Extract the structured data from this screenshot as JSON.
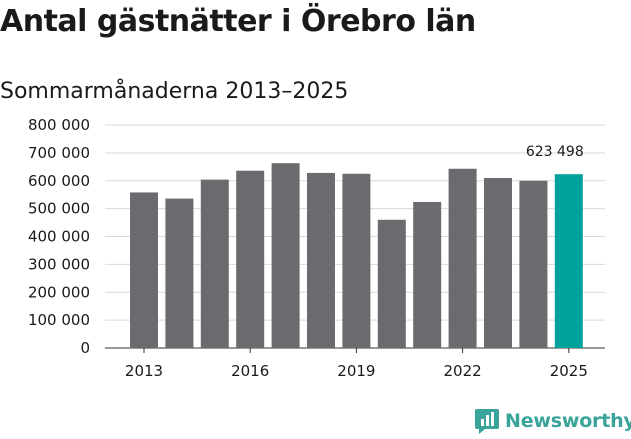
{
  "title": "Antal gästnätter i Örebro län",
  "subtitle": "Sommarmånaderna 2013–2025",
  "brand": "Newsworthy",
  "colors": {
    "bar": "#6b6a6e",
    "highlight": "#00a39b",
    "grid": "#d9d9d9",
    "brand": "#3aa39a"
  },
  "chart_data": {
    "type": "bar",
    "categories": [
      "2013",
      "2014",
      "2015",
      "2016",
      "2017",
      "2018",
      "2019",
      "2020",
      "2021",
      "2022",
      "2023",
      "2024",
      "2025"
    ],
    "values": [
      558000,
      536000,
      604000,
      636000,
      663000,
      628000,
      625000,
      460000,
      524000,
      643000,
      610000,
      600000,
      623498
    ],
    "ylim": [
      0,
      800000
    ],
    "yticks": [
      0,
      100000,
      200000,
      300000,
      400000,
      500000,
      600000,
      700000,
      800000
    ],
    "ytick_labels": [
      "0",
      "100 000",
      "200 000",
      "300 000",
      "400 000",
      "500 000",
      "600 000",
      "700 000",
      "800 000"
    ],
    "xtick_labels": [
      "2013",
      "2016",
      "2019",
      "2022",
      "2025"
    ],
    "highlight_index": 12,
    "data_label": "623 498",
    "grid": true
  }
}
